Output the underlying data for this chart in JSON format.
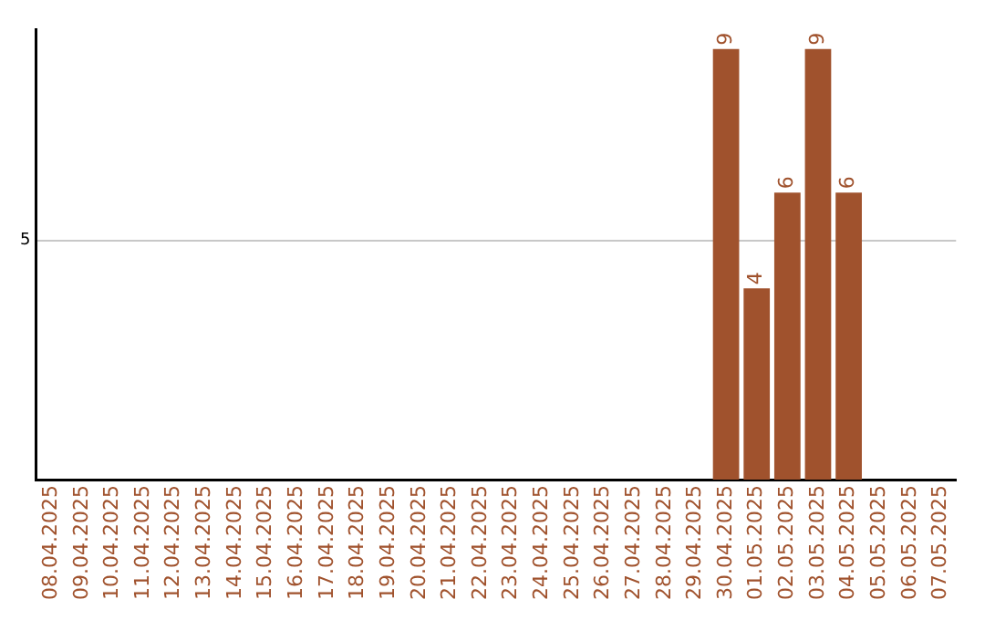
{
  "chart_data": {
    "type": "bar",
    "categories": [
      "08.04.2025",
      "09.04.2025",
      "10.04.2025",
      "11.04.2025",
      "12.04.2025",
      "13.04.2025",
      "14.04.2025",
      "15.04.2025",
      "16.04.2025",
      "17.04.2025",
      "18.04.2025",
      "19.04.2025",
      "20.04.2025",
      "21.04.2025",
      "22.04.2025",
      "23.04.2025",
      "24.04.2025",
      "25.04.2025",
      "26.04.2025",
      "27.04.2025",
      "28.04.2025",
      "29.04.2025",
      "30.04.2025",
      "01.05.2025",
      "02.05.2025",
      "03.05.2025",
      "04.05.2025",
      "05.05.2025",
      "06.05.2025",
      "07.05.2025"
    ],
    "values": [
      null,
      null,
      null,
      null,
      null,
      null,
      null,
      null,
      null,
      null,
      null,
      null,
      null,
      null,
      null,
      null,
      null,
      null,
      null,
      null,
      null,
      null,
      9,
      4,
      6,
      9,
      6,
      null,
      null,
      null
    ],
    "color": "#a0522d",
    "ylim": [
      0,
      9.4
    ],
    "yticks": [
      5
    ],
    "grid": "y",
    "data_labels": true,
    "legend": false
  }
}
